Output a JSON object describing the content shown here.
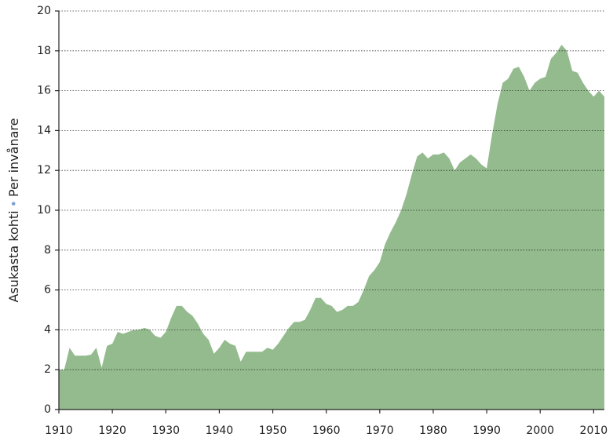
{
  "chart_data": {
    "type": "area",
    "ylabel_fi": "Asukasta kohti",
    "ylabel_sv": "Per invånare",
    "color": "#93bb8d",
    "grid": true,
    "xlim": [
      1910,
      2012
    ],
    "ylim": [
      0,
      20
    ],
    "xticks": [
      1910,
      1920,
      1930,
      1940,
      1950,
      1960,
      1970,
      1980,
      1990,
      2000,
      2010
    ],
    "yticks": [
      0,
      2,
      4,
      6,
      8,
      10,
      12,
      14,
      16,
      18,
      20
    ],
    "x": [
      1910,
      1911,
      1912,
      1913,
      1914,
      1915,
      1916,
      1917,
      1918,
      1919,
      1920,
      1921,
      1922,
      1923,
      1924,
      1925,
      1926,
      1927,
      1928,
      1929,
      1930,
      1931,
      1932,
      1933,
      1934,
      1935,
      1936,
      1937,
      1938,
      1939,
      1940,
      1941,
      1942,
      1943,
      1944,
      1945,
      1946,
      1947,
      1948,
      1949,
      1950,
      1951,
      1952,
      1953,
      1954,
      1955,
      1956,
      1957,
      1958,
      1959,
      1960,
      1961,
      1962,
      1963,
      1964,
      1965,
      1966,
      1967,
      1968,
      1969,
      1970,
      1971,
      1972,
      1973,
      1974,
      1975,
      1976,
      1977,
      1978,
      1979,
      1980,
      1981,
      1982,
      1983,
      1984,
      1985,
      1986,
      1987,
      1988,
      1989,
      1990,
      1991,
      1992,
      1993,
      1994,
      1995,
      1996,
      1997,
      1998,
      1999,
      2000,
      2001,
      2002,
      2003,
      2004,
      2005,
      2006,
      2007,
      2008,
      2009,
      2010,
      2011,
      2012
    ],
    "values": [
      2.0,
      2.0,
      3.1,
      2.7,
      2.7,
      2.7,
      2.75,
      3.1,
      2.1,
      3.2,
      3.3,
      3.9,
      3.8,
      3.9,
      4.0,
      4.0,
      4.1,
      4.0,
      3.7,
      3.6,
      3.9,
      4.6,
      5.2,
      5.2,
      4.9,
      4.7,
      4.3,
      3.8,
      3.5,
      2.8,
      3.1,
      3.5,
      3.3,
      3.2,
      2.4,
      2.9,
      2.9,
      2.9,
      2.9,
      3.1,
      3.0,
      3.3,
      3.7,
      4.1,
      4.4,
      4.4,
      4.5,
      5.0,
      5.6,
      5.6,
      5.3,
      5.2,
      4.9,
      5.0,
      5.2,
      5.2,
      5.4,
      6.0,
      6.7,
      7.0,
      7.4,
      8.3,
      8.9,
      9.4,
      10.0,
      10.8,
      11.8,
      12.7,
      12.9,
      12.6,
      12.8,
      12.8,
      12.9,
      12.6,
      12.0,
      12.4,
      12.6,
      12.8,
      12.6,
      12.3,
      12.1,
      13.8,
      15.3,
      16.4,
      16.6,
      17.1,
      17.2,
      16.7,
      16.0,
      16.4,
      16.6,
      16.7,
      17.6,
      17.9,
      18.3,
      18.0,
      17.0,
      16.9,
      16.4,
      16.0,
      15.7,
      16.0,
      15.7
    ]
  }
}
